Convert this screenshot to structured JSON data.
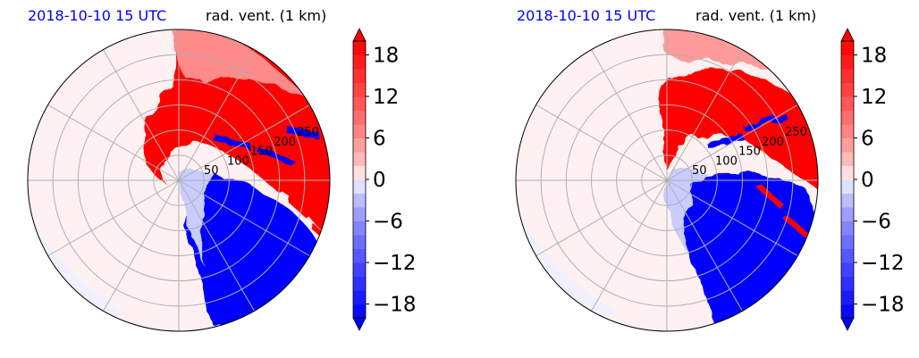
{
  "chart_data": [
    {
      "type": "polar-heatmap",
      "title_left": "2018-10-10 15 UTC",
      "title_right": "rad. vent. (1 km)",
      "radial_ticks": [
        "50",
        "100",
        "150",
        "200",
        "250"
      ],
      "radial_tick_values": [
        50,
        100,
        150,
        200,
        250
      ],
      "rmax": 300,
      "colorbar": {
        "min": -20,
        "max": 20,
        "ticks": [
          -18,
          -12,
          -6,
          0,
          6,
          12,
          18
        ],
        "tick_labels": [
          "−18",
          "−12",
          "−6",
          "0",
          "6",
          "12",
          "18"
        ]
      },
      "regions": {
        "positive": "north / north-east (outbound, red)",
        "negative": "south / south-east (inbound, blue)"
      }
    },
    {
      "type": "polar-heatmap",
      "title_left": "2018-10-10 15 UTC",
      "title_right": "rad. vent. (1 km)",
      "radial_ticks": [
        "50",
        "100",
        "150",
        "200",
        "250"
      ],
      "radial_tick_values": [
        50,
        100,
        150,
        200,
        250
      ],
      "rmax": 300,
      "colorbar": {
        "min": -20,
        "max": 20,
        "ticks": [
          -18,
          -12,
          -6,
          0,
          6,
          12,
          18
        ],
        "tick_labels": [
          "−18",
          "−12",
          "−6",
          "0",
          "6",
          "12",
          "18"
        ]
      },
      "regions": {
        "positive": "north-east (outbound, red)",
        "negative": "south-east (inbound, blue)"
      }
    }
  ],
  "colors": {
    "title_date": "#0000ff",
    "positive": "#ff0000",
    "negative": "#0000ff",
    "grid": "#b0b0b0"
  }
}
